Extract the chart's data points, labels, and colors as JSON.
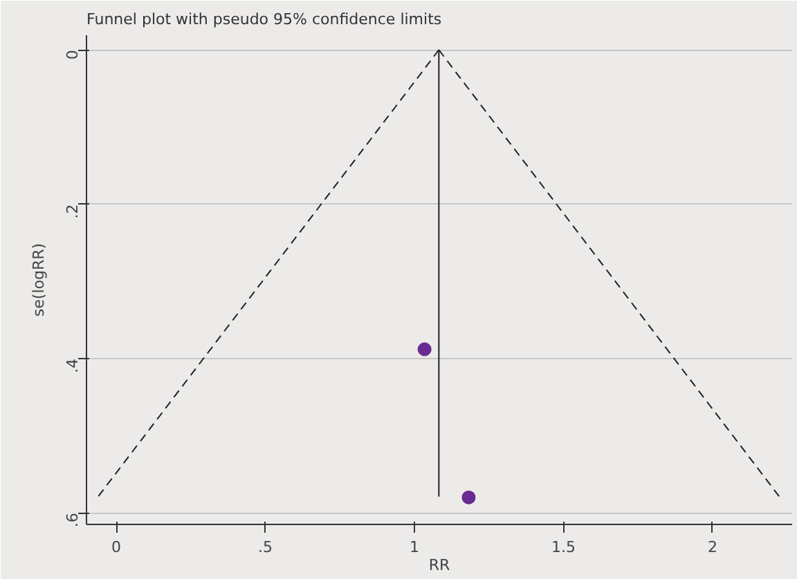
{
  "chart_data": {
    "type": "scatter",
    "title": "Funnel plot with pseudo 95% confidence limits",
    "xlabel": "RR",
    "ylabel": "se(logRR)",
    "series": [
      {
        "type": "line",
        "color": "#222222",
        "line_style": "dashed",
        "marker": "none",
        "x": [
          1.082,
          -0.061
        ],
        "values": [
          0,
          0.579
        ]
      },
      {
        "type": "line",
        "color": "#222222",
        "line_style": "dashed",
        "marker": "none",
        "x": [
          1.082,
          2.224
        ],
        "values": [
          0,
          0.579
        ]
      },
      {
        "type": "line",
        "color": "#222222",
        "line_style": "solid",
        "marker": "none",
        "x": [
          1.082,
          1.082
        ],
        "values": [
          0,
          0.579
        ]
      },
      {
        "color": "#6a2c91",
        "marker": "circle",
        "x": [
          1.034,
          1.182
        ],
        "values": [
          0.388,
          0.58
        ]
      }
    ],
    "xlim": [
      -0.1,
      2.267
    ],
    "ylim": [
      0.615,
      -0.019
    ],
    "xticks": [
      0,
      {
        "value": 0.5,
        "label": ".5"
      },
      1,
      {
        "value": 1.5,
        "label": "1.5"
      },
      2
    ],
    "yticks": [
      0,
      {
        "value": 0.2,
        "label": ".2"
      },
      {
        "value": 0.4,
        "label": ".4"
      },
      {
        "value": 0.6,
        "label": ".6"
      }
    ],
    "grid": "y"
  }
}
